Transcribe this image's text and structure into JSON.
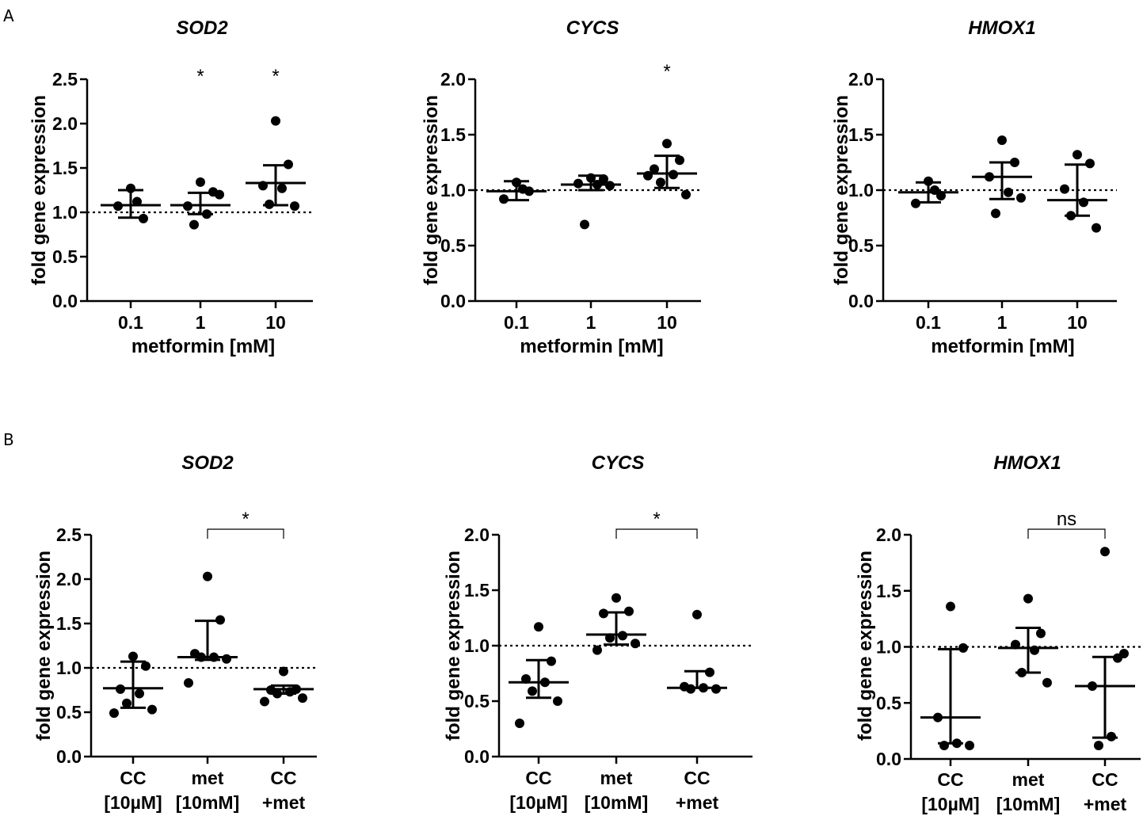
{
  "panels": [
    {
      "label": "A"
    },
    {
      "label": "B"
    }
  ],
  "chart_data": [
    {
      "panel": "A",
      "type": "scatter",
      "title": "SOD2",
      "ylabel": "fold gene expression",
      "xlabel": "metformin [mM]",
      "ylim": [
        0,
        2.5
      ],
      "yticks": [
        "0.0",
        "0.5",
        "1.0",
        "1.5",
        "2.0",
        "2.5"
      ],
      "reference_line": 1.0,
      "categories": [
        [
          "0.1"
        ],
        [
          "1"
        ],
        [
          "10"
        ]
      ],
      "groups": [
        {
          "points": [
            1.27,
            0.93,
            1.07,
            1.12
          ],
          "median": 1.08,
          "lower": 0.94,
          "upper": 1.25,
          "sig": ""
        },
        {
          "points": [
            1.34,
            1.23,
            1.07,
            0.98,
            0.86,
            1.2
          ],
          "median": 1.08,
          "lower": 0.98,
          "upper": 1.22,
          "sig": "*"
        },
        {
          "points": [
            2.03,
            1.54,
            1.3,
            1.27,
            1.09,
            1.07
          ],
          "median": 1.33,
          "lower": 1.08,
          "upper": 1.53,
          "sig": "*"
        }
      ]
    },
    {
      "panel": "A",
      "type": "scatter",
      "title": "CYCS",
      "ylabel": "fold gene expression",
      "xlabel": "metformin [mM]",
      "ylim": [
        0,
        2.0
      ],
      "yticks": [
        "0.0",
        "0.5",
        "1.0",
        "1.5",
        "2.0"
      ],
      "reference_line": 1.0,
      "categories": [
        [
          "0.1"
        ],
        [
          "1"
        ],
        [
          "10"
        ]
      ],
      "groups": [
        {
          "points": [
            1.07,
            0.99,
            0.92,
            1.01
          ],
          "median": 0.99,
          "lower": 0.91,
          "upper": 1.08,
          "sig": ""
        },
        {
          "points": [
            1.11,
            1.1,
            1.06,
            1.05,
            0.69,
            1.04
          ],
          "median": 1.05,
          "lower": 1.0,
          "upper": 1.13,
          "sig": ""
        },
        {
          "points": [
            1.42,
            1.27,
            1.19,
            1.14,
            1.07,
            0.96,
            1.13
          ],
          "median": 1.15,
          "lower": 1.02,
          "upper": 1.31,
          "sig": "*"
        }
      ]
    },
    {
      "panel": "A",
      "type": "scatter",
      "title": "HMOX1",
      "ylabel": "fold gene expression",
      "xlabel": "metformin [mM]",
      "ylim": [
        0,
        2.0
      ],
      "yticks": [
        "0.0",
        "0.5",
        "1.0",
        "1.5",
        "2.0"
      ],
      "reference_line": 1.0,
      "categories": [
        [
          "0.1"
        ],
        [
          "1"
        ],
        [
          "10"
        ]
      ],
      "groups": [
        {
          "points": [
            1.08,
            0.95,
            0.88,
            1.0
          ],
          "median": 0.98,
          "lower": 0.89,
          "upper": 1.07,
          "sig": ""
        },
        {
          "points": [
            1.45,
            1.25,
            1.12,
            0.98,
            0.79,
            0.93
          ],
          "median": 1.12,
          "lower": 0.92,
          "upper": 1.25,
          "sig": ""
        },
        {
          "points": [
            1.32,
            1.24,
            1.01,
            0.89,
            0.77,
            0.66
          ],
          "median": 0.91,
          "lower": 0.77,
          "upper": 1.23,
          "sig": ""
        }
      ]
    },
    {
      "panel": "B",
      "type": "scatter",
      "title": "SOD2",
      "ylabel": "fold gene expression",
      "xlabel": "",
      "ylim": [
        0,
        2.5
      ],
      "yticks": [
        "0.0",
        "0.5",
        "1.0",
        "1.5",
        "2.0",
        "2.5"
      ],
      "reference_line": 1.0,
      "categories": [
        [
          "CC",
          "[10µM]"
        ],
        [
          "met",
          "[10mM]"
        ],
        [
          "CC",
          "+met"
        ]
      ],
      "groups": [
        {
          "points": [
            1.13,
            1.02,
            0.76,
            0.71,
            0.6,
            0.53,
            0.49
          ],
          "median": 0.77,
          "lower": 0.55,
          "upper": 1.07,
          "sig": ""
        },
        {
          "points": [
            2.03,
            1.54,
            1.16,
            1.12,
            1.12,
            1.1,
            0.83
          ],
          "median": 1.12,
          "lower": 1.09,
          "upper": 1.53,
          "sig": ""
        },
        {
          "points": [
            0.96,
            0.76,
            0.75,
            0.73,
            0.71,
            0.66,
            0.62
          ],
          "median": 0.76,
          "lower": 0.71,
          "upper": 0.8,
          "sig": ""
        }
      ],
      "bracket": {
        "from": 1,
        "to": 2,
        "label": "*"
      }
    },
    {
      "panel": "B",
      "type": "scatter",
      "title": "CYCS",
      "ylabel": "fold gene expression",
      "xlabel": "",
      "ylim": [
        0,
        2.0
      ],
      "yticks": [
        "0.0",
        "0.5",
        "1.0",
        "1.5",
        "2.0"
      ],
      "reference_line": 1.0,
      "categories": [
        [
          "CC",
          "[10µM]"
        ],
        [
          "met",
          "[10mM]"
        ],
        [
          "CC",
          "+met"
        ]
      ],
      "groups": [
        {
          "points": [
            1.17,
            0.86,
            0.7,
            0.67,
            0.59,
            0.5,
            0.3
          ],
          "median": 0.67,
          "lower": 0.53,
          "upper": 0.87,
          "sig": ""
        },
        {
          "points": [
            1.43,
            1.31,
            1.29,
            1.09,
            1.07,
            1.02,
            0.96
          ],
          "median": 1.1,
          "lower": 1.01,
          "upper": 1.3,
          "sig": ""
        },
        {
          "points": [
            1.28,
            0.76,
            0.63,
            0.62,
            0.61,
            0.61
          ],
          "median": 0.62,
          "lower": 0.62,
          "upper": 0.77,
          "sig": ""
        }
      ],
      "bracket": {
        "from": 1,
        "to": 2,
        "label": "*"
      }
    },
    {
      "panel": "B",
      "type": "scatter",
      "title": "HMOX1",
      "ylabel": "fold gene expression",
      "xlabel": "",
      "ylim": [
        0,
        2.0
      ],
      "yticks": [
        "0.0",
        "0.5",
        "1.0",
        "1.5",
        "2.0"
      ],
      "reference_line": 1.0,
      "categories": [
        [
          "CC",
          "[10µM]"
        ],
        [
          "met",
          "[10mM]"
        ],
        [
          "CC",
          "+met"
        ]
      ],
      "groups": [
        {
          "points": [
            1.36,
            0.99,
            0.37,
            0.14,
            0.12,
            0.12
          ],
          "median": 0.37,
          "lower": 0.14,
          "upper": 0.98,
          "sig": ""
        },
        {
          "points": [
            1.43,
            1.12,
            1.02,
            0.97,
            0.77,
            0.68
          ],
          "median": 0.99,
          "lower": 0.77,
          "upper": 1.17,
          "sig": ""
        },
        {
          "points": [
            1.85,
            0.9,
            0.65,
            0.2,
            0.12,
            0.94
          ],
          "median": 0.65,
          "lower": 0.19,
          "upper": 0.91,
          "sig": ""
        }
      ],
      "bracket": {
        "from": 1,
        "to": 2,
        "label": "ns"
      }
    }
  ]
}
